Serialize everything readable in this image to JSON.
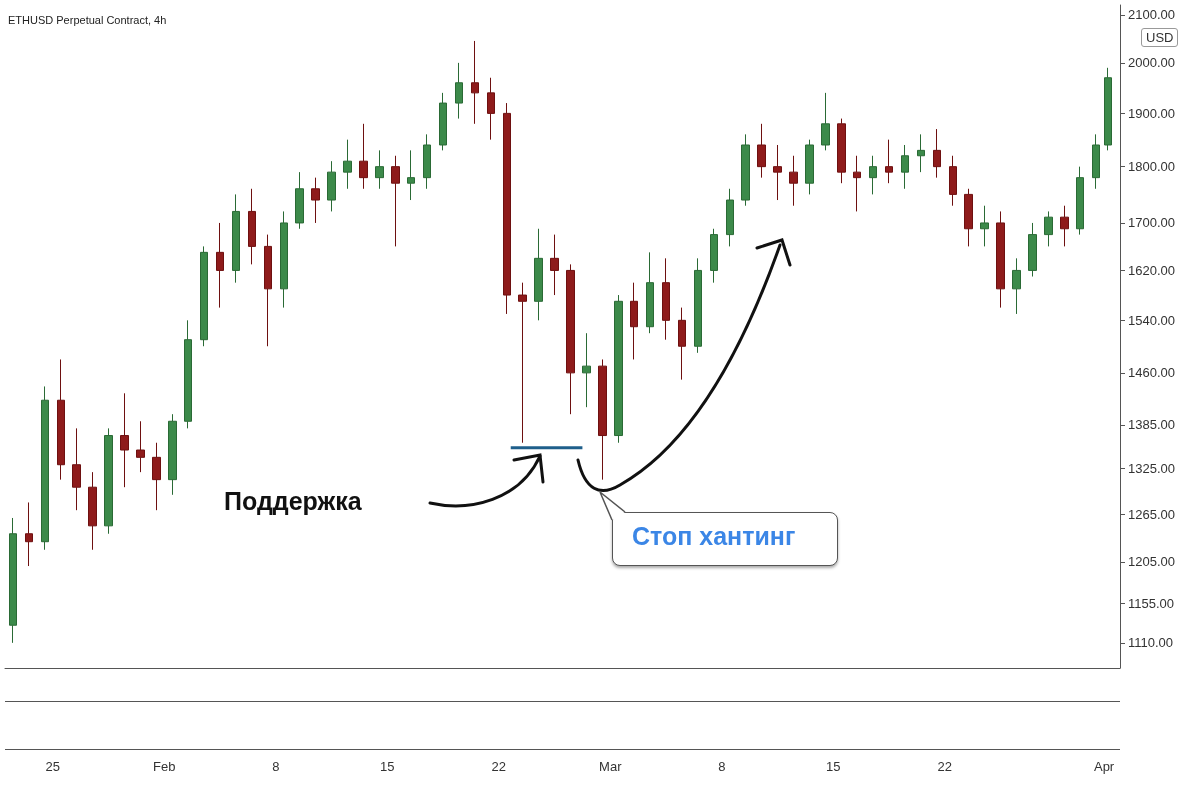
{
  "chart_data": {
    "type": "candlestick",
    "title": "ETHUSD Perpetual Contract, 4h",
    "annotations": [
      "Поддержка",
      "Стоп хантинг",
      "USD"
    ],
    "log": true,
    "grid": false,
    "xlim": [
      "--01-22T00:00",
      "--04-02T00:00"
    ],
    "xticks": [
      {
        "value": "--01-25",
        "label": "25"
      },
      {
        "value": "--02-01",
        "label": "Feb"
      },
      {
        "value": "--02-08",
        "label": "8"
      },
      {
        "value": "--02-15",
        "label": "15"
      },
      {
        "value": "--02-22",
        "label": "22"
      },
      {
        "value": "--03-01",
        "label": "Mar"
      },
      {
        "value": "--03-08",
        "label": "8"
      },
      {
        "value": "--03-15",
        "label": "15"
      },
      {
        "value": "--03-22",
        "label": "22"
      },
      {
        "value": "--04-01",
        "label": "Apr"
      }
    ],
    "ylim": [
      1082,
      2121
    ],
    "yticks": [
      {
        "value": 1110,
        "label": "1110.00"
      },
      {
        "value": 1155,
        "label": "1155.00"
      },
      {
        "value": 1205,
        "label": "1205.00"
      },
      {
        "value": 1265,
        "label": "1265.00"
      },
      {
        "value": 1325,
        "label": "1325.00"
      },
      {
        "value": 1385,
        "label": "1385.00"
      },
      {
        "value": 1460,
        "label": "1460.00"
      },
      {
        "value": 1540,
        "label": "1540.00"
      },
      {
        "value": 1620,
        "label": "1620.00"
      },
      {
        "value": 1700,
        "label": "1700.00"
      },
      {
        "value": 1800,
        "label": "1800.00"
      },
      {
        "value": 1900,
        "label": "1900.00"
      },
      {
        "value": 2000,
        "label": "2000.00"
      },
      {
        "value": 2100,
        "label": "2100.00"
      }
    ],
    "x": [
      "--01-22T12:00",
      "--01-23T12:00",
      "--01-24T12:00",
      "--01-25T12:00",
      "--01-26T12:00",
      "--01-27T12:00",
      "--01-28T12:00",
      "--01-29T12:00",
      "--01-30T12:00",
      "--01-31T12:00",
      "--02-01T12:00",
      "--02-02T12:00",
      "--02-03T12:00",
      "--02-04T12:00",
      "--02-05T12:00",
      "--02-06T12:00",
      "--02-07T12:00",
      "--02-08T12:00",
      "--02-09T12:00",
      "--02-10T12:00",
      "--02-11T12:00",
      "--02-12T12:00",
      "--02-13T12:00",
      "--02-14T12:00",
      "--02-15T12:00",
      "--02-16T12:00",
      "--02-17T12:00",
      "--02-18T12:00",
      "--02-19T12:00",
      "--02-20T12:00",
      "--02-21T12:00",
      "--02-22T12:00",
      "--02-23T12:00",
      "--02-24T12:00",
      "--02-25T12:00",
      "--02-26T12:00",
      "--02-27T12:00",
      "--02-28T12:00",
      "--03-01T12:00",
      "--03-02T12:00",
      "--03-03T12:00",
      "--03-04T12:00",
      "--03-05T12:00",
      "--03-06T12:00",
      "--03-07T12:00",
      "--03-08T12:00",
      "--03-09T12:00",
      "--03-10T12:00",
      "--03-11T12:00",
      "--03-12T12:00",
      "--03-13T12:00",
      "--03-14T12:00",
      "--03-15T12:00",
      "--03-16T12:00",
      "--03-17T12:00",
      "--03-18T12:00",
      "--03-19T12:00",
      "--03-20T12:00",
      "--03-21T12:00",
      "--03-22T12:00",
      "--03-23T12:00",
      "--03-24T12:00",
      "--03-25T12:00",
      "--03-26T12:00",
      "--03-27T12:00",
      "--03-28T12:00",
      "--03-29T12:00",
      "--03-30T12:00",
      "--03-31T12:00",
      "--04-01T06:00"
    ],
    "ohlc": [
      [
        1130,
        1260,
        1110,
        1240
      ],
      [
        1240,
        1280,
        1200,
        1230
      ],
      [
        1230,
        1440,
        1220,
        1420
      ],
      [
        1420,
        1480,
        1310,
        1330
      ],
      [
        1330,
        1380,
        1270,
        1300
      ],
      [
        1300,
        1320,
        1220,
        1250
      ],
      [
        1250,
        1380,
        1240,
        1370
      ],
      [
        1370,
        1430,
        1300,
        1350
      ],
      [
        1350,
        1390,
        1320,
        1340
      ],
      [
        1340,
        1360,
        1270,
        1310
      ],
      [
        1310,
        1400,
        1290,
        1390
      ],
      [
        1390,
        1540,
        1380,
        1510
      ],
      [
        1510,
        1660,
        1500,
        1650
      ],
      [
        1650,
        1700,
        1560,
        1620
      ],
      [
        1620,
        1750,
        1600,
        1720
      ],
      [
        1720,
        1760,
        1630,
        1660
      ],
      [
        1660,
        1680,
        1500,
        1590
      ],
      [
        1590,
        1720,
        1560,
        1700
      ],
      [
        1700,
        1790,
        1690,
        1760
      ],
      [
        1760,
        1780,
        1700,
        1740
      ],
      [
        1740,
        1810,
        1720,
        1790
      ],
      [
        1790,
        1850,
        1760,
        1810
      ],
      [
        1810,
        1880,
        1760,
        1780
      ],
      [
        1780,
        1830,
        1760,
        1800
      ],
      [
        1800,
        1820,
        1660,
        1770
      ],
      [
        1770,
        1830,
        1740,
        1780
      ],
      [
        1780,
        1860,
        1760,
        1840
      ],
      [
        1840,
        1940,
        1830,
        1920
      ],
      [
        1920,
        2000,
        1890,
        1960
      ],
      [
        1960,
        2045,
        1880,
        1940
      ],
      [
        1940,
        1970,
        1850,
        1900
      ],
      [
        1900,
        1920,
        1550,
        1580
      ],
      [
        1580,
        1600,
        1360,
        1570
      ],
      [
        1570,
        1690,
        1540,
        1640
      ],
      [
        1640,
        1680,
        1580,
        1620
      ],
      [
        1620,
        1630,
        1400,
        1460
      ],
      [
        1460,
        1520,
        1410,
        1470
      ],
      [
        1470,
        1480,
        1310,
        1370
      ],
      [
        1370,
        1580,
        1360,
        1570
      ],
      [
        1570,
        1600,
        1480,
        1530
      ],
      [
        1530,
        1650,
        1520,
        1600
      ],
      [
        1600,
        1640,
        1510,
        1540
      ],
      [
        1540,
        1560,
        1450,
        1500
      ],
      [
        1500,
        1640,
        1490,
        1620
      ],
      [
        1620,
        1690,
        1600,
        1680
      ],
      [
        1680,
        1760,
        1660,
        1740
      ],
      [
        1740,
        1860,
        1730,
        1840
      ],
      [
        1840,
        1880,
        1780,
        1800
      ],
      [
        1800,
        1840,
        1740,
        1790
      ],
      [
        1790,
        1820,
        1730,
        1770
      ],
      [
        1770,
        1850,
        1750,
        1840
      ],
      [
        1840,
        1940,
        1830,
        1880
      ],
      [
        1880,
        1890,
        1770,
        1790
      ],
      [
        1790,
        1820,
        1720,
        1780
      ],
      [
        1780,
        1820,
        1750,
        1800
      ],
      [
        1800,
        1850,
        1770,
        1790
      ],
      [
        1790,
        1840,
        1760,
        1820
      ],
      [
        1820,
        1860,
        1790,
        1830
      ],
      [
        1830,
        1870,
        1780,
        1800
      ],
      [
        1800,
        1820,
        1730,
        1750
      ],
      [
        1750,
        1760,
        1660,
        1690
      ],
      [
        1690,
        1730,
        1660,
        1700
      ],
      [
        1700,
        1720,
        1560,
        1590
      ],
      [
        1590,
        1640,
        1550,
        1620
      ],
      [
        1620,
        1700,
        1610,
        1680
      ],
      [
        1680,
        1720,
        1660,
        1710
      ],
      [
        1710,
        1730,
        1660,
        1690
      ],
      [
        1690,
        1800,
        1680,
        1780
      ],
      [
        1780,
        1860,
        1760,
        1840
      ],
      [
        1840,
        1990,
        1830,
        1970
      ]
    ],
    "series": [
      {
        "type": "line",
        "color": "#1f5f8b",
        "x": [
          "--02-22T18:00",
          "--02-27T06:00"
        ],
        "values": [
          1353,
          1353
        ]
      }
    ]
  }
}
